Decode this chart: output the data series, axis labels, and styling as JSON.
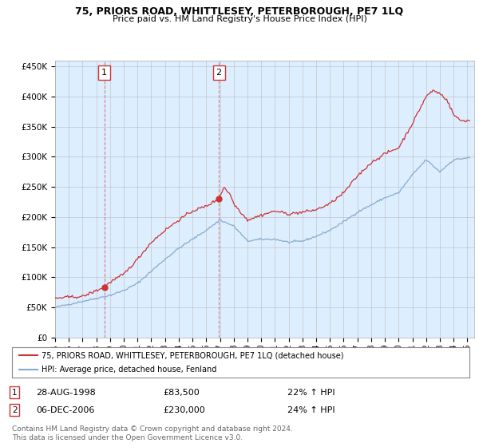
{
  "title": "75, PRIORS ROAD, WHITTLESEY, PETERBOROUGH, PE7 1LQ",
  "subtitle": "Price paid vs. HM Land Registry's House Price Index (HPI)",
  "sale1_year": 1998,
  "sale1_month": 8,
  "sale1_price": 83500,
  "sale2_year": 2006,
  "sale2_month": 12,
  "sale2_price": 230000,
  "legend_line1": "75, PRIORS ROAD, WHITTLESEY, PETERBOROUGH, PE7 1LQ (detached house)",
  "legend_line2": "HPI: Average price, detached house, Fenland",
  "ann1_date": "28-AUG-1998",
  "ann1_price": "£83,500",
  "ann1_hpi": "22% ↑ HPI",
  "ann2_date": "06-DEC-2006",
  "ann2_price": "£230,000",
  "ann2_hpi": "24% ↑ HPI",
  "footer": "Contains HM Land Registry data © Crown copyright and database right 2024.\nThis data is licensed under the Open Government Licence v3.0.",
  "red_color": "#cc3333",
  "blue_color": "#88aacc",
  "bg_color": "#ddeeff",
  "plot_bg": "#ffffff",
  "ylim": [
    0,
    460000
  ],
  "yticks": [
    0,
    50000,
    100000,
    150000,
    200000,
    250000,
    300000,
    350000,
    400000,
    450000
  ],
  "ytick_labels": [
    "£0",
    "£50K",
    "£100K",
    "£150K",
    "£200K",
    "£250K",
    "£300K",
    "£350K",
    "£400K",
    "£450K"
  ],
  "hpi_key_times": [
    1995,
    1996,
    1997,
    1998,
    1999,
    2000,
    2001,
    2002,
    2003,
    2004,
    2005,
    2006,
    2007,
    2008,
    2009,
    2010,
    2011,
    2012,
    2013,
    2014,
    2015,
    2016,
    2017,
    2018,
    2019,
    2020,
    2021,
    2022,
    2023,
    2024,
    2025
  ],
  "hpi_key_vals": [
    50000,
    55000,
    60000,
    65000,
    70000,
    78000,
    90000,
    110000,
    130000,
    148000,
    163000,
    178000,
    195000,
    185000,
    160000,
    163000,
    163000,
    158000,
    160000,
    168000,
    178000,
    192000,
    208000,
    220000,
    232000,
    240000,
    270000,
    295000,
    275000,
    295000,
    298000
  ],
  "prop_key_times": [
    1995,
    1996,
    1997,
    1998.583,
    1999,
    2000,
    2001,
    2002,
    2003,
    2004,
    2005,
    2006,
    2006.917,
    2007.3,
    2007.8,
    2008,
    2009,
    2010,
    2011,
    2012,
    2013,
    2014,
    2015,
    2016,
    2017,
    2018,
    2019,
    2020,
    2021,
    2022,
    2022.5,
    2023,
    2023.5,
    2024,
    2024.5,
    2025
  ],
  "prop_key_vals": [
    65000,
    67000,
    68000,
    83500,
    92000,
    105000,
    130000,
    158000,
    178000,
    195000,
    210000,
    218000,
    230000,
    250000,
    235000,
    222000,
    195000,
    203000,
    210000,
    205000,
    208000,
    212000,
    222000,
    240000,
    268000,
    290000,
    305000,
    315000,
    355000,
    400000,
    410000,
    405000,
    395000,
    370000,
    360000,
    360000
  ]
}
